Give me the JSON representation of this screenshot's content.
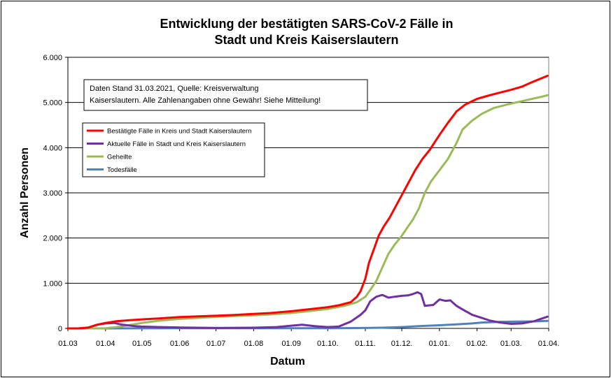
{
  "chart_data": {
    "type": "line",
    "title": [
      "Entwicklung der bestätigten SARS-CoV-2 Fälle in",
      "Stadt und Kreis Kaiserslautern"
    ],
    "xlabel": "Datum",
    "ylabel": "Anzahl Personen",
    "ylim": [
      0,
      6000
    ],
    "yticks": [
      0,
      1000,
      2000,
      3000,
      4000,
      5000,
      6000
    ],
    "ytick_labels": [
      "0",
      "1.000",
      "2.000",
      "3.000",
      "4.000",
      "5.000",
      "6.000"
    ],
    "xticks": [
      "2020-03-01",
      "2020-04-01",
      "2020-05-01",
      "2020-06-01",
      "2020-07-01",
      "2020-08-01",
      "2020-09-01",
      "2020-10-01",
      "2020-11-01",
      "2020-12-01",
      "2021-01-01",
      "2021-02-01",
      "2021-03-01",
      "2021-04-01"
    ],
    "xtick_labels": [
      "01.03",
      "01.04",
      "01.05",
      "01.06",
      "01.07",
      "01.08",
      "01.09",
      "01.10.",
      "01.11.",
      "01.12.",
      "01.01.",
      "01.02.",
      "01.03.",
      "01.04."
    ],
    "xlim": [
      "2020-03-01",
      "2021-04-01"
    ],
    "grid": "horizontal",
    "legend_position": "upper-left",
    "annotation": [
      "Daten Stand 31.03.2021, Quelle: Kreisverwaltung",
      "Kaiserslautern. Alle Zahlenangaben ohne Gewähr! Siehe Mitteilung!"
    ],
    "series": [
      {
        "name": "Bestätigte Fälle in Kreis und Stadt Kaiserslautern",
        "color": "#ff0000",
        "points": [
          [
            "2020-03-01",
            0
          ],
          [
            "2020-03-10",
            0
          ],
          [
            "2020-03-18",
            20
          ],
          [
            "2020-03-25",
            80
          ],
          [
            "2020-04-01",
            120
          ],
          [
            "2020-04-10",
            160
          ],
          [
            "2020-04-20",
            180
          ],
          [
            "2020-05-01",
            200
          ],
          [
            "2020-05-15",
            220
          ],
          [
            "2020-06-01",
            250
          ],
          [
            "2020-06-15",
            265
          ],
          [
            "2020-07-01",
            280
          ],
          [
            "2020-07-15",
            295
          ],
          [
            "2020-08-01",
            320
          ],
          [
            "2020-08-15",
            340
          ],
          [
            "2020-09-01",
            380
          ],
          [
            "2020-09-15",
            420
          ],
          [
            "2020-10-01",
            470
          ],
          [
            "2020-10-10",
            510
          ],
          [
            "2020-10-20",
            580
          ],
          [
            "2020-10-25",
            700
          ],
          [
            "2020-10-28",
            820
          ],
          [
            "2020-11-01",
            1100
          ],
          [
            "2020-11-04",
            1450
          ],
          [
            "2020-11-08",
            1750
          ],
          [
            "2020-11-12",
            2050
          ],
          [
            "2020-11-16",
            2250
          ],
          [
            "2020-11-21",
            2450
          ],
          [
            "2020-11-25",
            2650
          ],
          [
            "2020-12-01",
            2950
          ],
          [
            "2020-12-06",
            3200
          ],
          [
            "2020-12-12",
            3500
          ],
          [
            "2020-12-18",
            3750
          ],
          [
            "2020-12-24",
            3950
          ],
          [
            "2021-01-01",
            4280
          ],
          [
            "2021-01-08",
            4550
          ],
          [
            "2021-01-15",
            4800
          ],
          [
            "2021-01-22",
            4950
          ],
          [
            "2021-02-01",
            5080
          ],
          [
            "2021-02-10",
            5150
          ],
          [
            "2021-02-20",
            5220
          ],
          [
            "2021-03-01",
            5280
          ],
          [
            "2021-03-10",
            5350
          ],
          [
            "2021-03-20",
            5470
          ],
          [
            "2021-03-31",
            5590
          ]
        ]
      },
      {
        "name": "Aktuelle Fälle in Stadt und Kreis Kaiserslautern",
        "color": "#7030a0",
        "points": [
          [
            "2020-03-01",
            0
          ],
          [
            "2020-03-10",
            0
          ],
          [
            "2020-03-18",
            20
          ],
          [
            "2020-03-25",
            80
          ],
          [
            "2020-04-01",
            110
          ],
          [
            "2020-04-08",
            120
          ],
          [
            "2020-04-15",
            80
          ],
          [
            "2020-04-25",
            50
          ],
          [
            "2020-05-01",
            40
          ],
          [
            "2020-05-15",
            30
          ],
          [
            "2020-06-01",
            20
          ],
          [
            "2020-06-15",
            15
          ],
          [
            "2020-07-01",
            10
          ],
          [
            "2020-08-01",
            15
          ],
          [
            "2020-08-20",
            30
          ],
          [
            "2020-09-01",
            60
          ],
          [
            "2020-09-10",
            80
          ],
          [
            "2020-09-20",
            50
          ],
          [
            "2020-10-01",
            30
          ],
          [
            "2020-10-10",
            40
          ],
          [
            "2020-10-20",
            150
          ],
          [
            "2020-10-28",
            300
          ],
          [
            "2020-11-01",
            400
          ],
          [
            "2020-11-05",
            600
          ],
          [
            "2020-11-10",
            700
          ],
          [
            "2020-11-15",
            740
          ],
          [
            "2020-11-20",
            680
          ],
          [
            "2020-11-25",
            700
          ],
          [
            "2020-12-01",
            720
          ],
          [
            "2020-12-06",
            730
          ],
          [
            "2020-12-10",
            760
          ],
          [
            "2020-12-14",
            800
          ],
          [
            "2020-12-17",
            760
          ],
          [
            "2020-12-20",
            500
          ],
          [
            "2020-12-27",
            520
          ],
          [
            "2021-01-01",
            640
          ],
          [
            "2021-01-06",
            610
          ],
          [
            "2021-01-10",
            620
          ],
          [
            "2021-01-15",
            500
          ],
          [
            "2021-01-20",
            420
          ],
          [
            "2021-01-28",
            300
          ],
          [
            "2021-02-05",
            230
          ],
          [
            "2021-02-12",
            170
          ],
          [
            "2021-02-20",
            130
          ],
          [
            "2021-03-01",
            100
          ],
          [
            "2021-03-10",
            110
          ],
          [
            "2021-03-20",
            160
          ],
          [
            "2021-03-31",
            260
          ]
        ]
      },
      {
        "name": "Geheilte",
        "color": "#9bbb59",
        "points": [
          [
            "2020-03-01",
            0
          ],
          [
            "2020-03-25",
            0
          ],
          [
            "2020-04-01",
            5
          ],
          [
            "2020-04-10",
            30
          ],
          [
            "2020-04-20",
            70
          ],
          [
            "2020-05-01",
            120
          ],
          [
            "2020-05-15",
            170
          ],
          [
            "2020-06-01",
            210
          ],
          [
            "2020-06-15",
            230
          ],
          [
            "2020-07-01",
            255
          ],
          [
            "2020-07-15",
            270
          ],
          [
            "2020-08-01",
            290
          ],
          [
            "2020-08-15",
            310
          ],
          [
            "2020-09-01",
            340
          ],
          [
            "2020-09-15",
            380
          ],
          [
            "2020-10-01",
            430
          ],
          [
            "2020-10-15",
            500
          ],
          [
            "2020-10-25",
            580
          ],
          [
            "2020-11-01",
            700
          ],
          [
            "2020-11-05",
            850
          ],
          [
            "2020-11-10",
            1050
          ],
          [
            "2020-11-15",
            1350
          ],
          [
            "2020-11-20",
            1650
          ],
          [
            "2020-11-25",
            1850
          ],
          [
            "2020-12-01",
            2050
          ],
          [
            "2020-12-06",
            2250
          ],
          [
            "2020-12-10",
            2400
          ],
          [
            "2020-12-15",
            2650
          ],
          [
            "2020-12-20",
            3000
          ],
          [
            "2020-12-25",
            3250
          ],
          [
            "2021-01-01",
            3500
          ],
          [
            "2021-01-08",
            3750
          ],
          [
            "2021-01-15",
            4100
          ],
          [
            "2021-01-20",
            4400
          ],
          [
            "2021-01-28",
            4600
          ],
          [
            "2021-02-05",
            4750
          ],
          [
            "2021-02-15",
            4880
          ],
          [
            "2021-02-25",
            4950
          ],
          [
            "2021-03-05",
            5000
          ],
          [
            "2021-03-15",
            5060
          ],
          [
            "2021-03-25",
            5120
          ],
          [
            "2021-03-31",
            5160
          ]
        ]
      },
      {
        "name": "Todesfälle",
        "color": "#4f81bd",
        "points": [
          [
            "2020-03-01",
            0
          ],
          [
            "2020-04-01",
            0
          ],
          [
            "2020-05-01",
            2
          ],
          [
            "2020-06-01",
            3
          ],
          [
            "2020-07-01",
            3
          ],
          [
            "2020-08-01",
            3
          ],
          [
            "2020-09-01",
            4
          ],
          [
            "2020-10-01",
            5
          ],
          [
            "2020-10-25",
            8
          ],
          [
            "2020-11-15",
            15
          ],
          [
            "2020-12-01",
            30
          ],
          [
            "2020-12-15",
            50
          ],
          [
            "2021-01-01",
            70
          ],
          [
            "2021-01-15",
            90
          ],
          [
            "2021-01-28",
            110
          ],
          [
            "2021-02-05",
            130
          ],
          [
            "2021-02-20",
            145
          ],
          [
            "2021-03-05",
            150
          ],
          [
            "2021-03-20",
            155
          ],
          [
            "2021-03-31",
            165
          ]
        ]
      }
    ]
  }
}
